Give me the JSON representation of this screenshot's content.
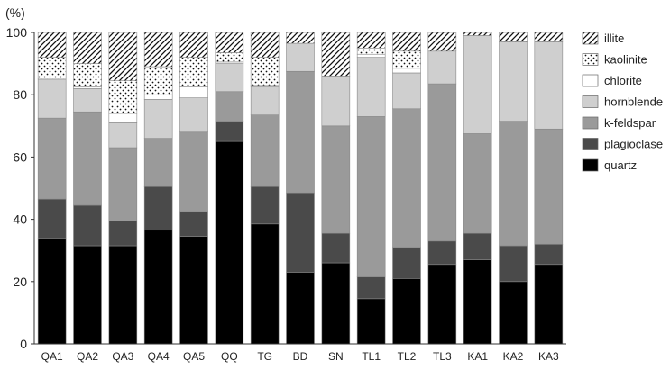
{
  "chart_data": {
    "type": "bar",
    "stacked": true,
    "title": "",
    "xlabel": "",
    "ylabel": "(%)",
    "ylim": [
      0,
      100
    ],
    "yticks": [
      0,
      20,
      40,
      60,
      80,
      100
    ],
    "grid": false,
    "legend_position": "right",
    "categories": [
      "QA1",
      "QA2",
      "QA3",
      "QA4",
      "QA5",
      "QQ",
      "TG",
      "BD",
      "SN",
      "TL1",
      "TL2",
      "TL3",
      "KA1",
      "KA2",
      "KA3"
    ],
    "series": [
      {
        "name": "quartz",
        "color": "#000000",
        "pattern": "solid",
        "values": [
          34,
          31.5,
          31.5,
          36.5,
          34.5,
          65,
          38.5,
          23,
          26,
          14.5,
          21,
          25.5,
          27,
          20,
          25.5
        ]
      },
      {
        "name": "plagioclase",
        "color": "#4a4a4a",
        "pattern": "solid",
        "values": [
          12.5,
          13,
          8,
          14,
          8,
          6.5,
          12,
          25.5,
          9.5,
          7,
          10,
          7.5,
          8.5,
          11.5,
          6.5
        ]
      },
      {
        "name": "k-feldspar",
        "color": "#9a9a9a",
        "pattern": "solid",
        "values": [
          26,
          30,
          23.5,
          15.5,
          25.5,
          9.5,
          23,
          39,
          34.5,
          51.5,
          44.5,
          50.5,
          32,
          40,
          37
        ]
      },
      {
        "name": "hornblende",
        "color": "#cfcfcf",
        "pattern": "solid",
        "values": [
          12.5,
          7.5,
          8,
          12.5,
          11,
          9,
          9,
          9,
          16,
          19,
          11.5,
          10.5,
          31.5,
          25.5,
          28
        ]
      },
      {
        "name": "chlorite",
        "color": "#ffffff",
        "pattern": "solid",
        "values": [
          0,
          0.5,
          3,
          1.5,
          3.5,
          0.5,
          0.5,
          0,
          0,
          1,
          1.5,
          0,
          0,
          0,
          0
        ]
      },
      {
        "name": "kaolinite",
        "color": "#ffffff",
        "pattern": "dots",
        "values": [
          7,
          7.5,
          10.5,
          9,
          9.5,
          3,
          9,
          0,
          0,
          2,
          5.5,
          0,
          0,
          0,
          0
        ]
      },
      {
        "name": "illite",
        "color": "#ffffff",
        "pattern": "hatch",
        "values": [
          8,
          10,
          15.5,
          11,
          8,
          6.5,
          8,
          3.5,
          14,
          5,
          6,
          6,
          1,
          3,
          3
        ]
      }
    ],
    "legend_order": [
      "illite",
      "kaolinite",
      "chlorite",
      "hornblende",
      "k-feldspar",
      "plagioclase",
      "quartz"
    ]
  }
}
